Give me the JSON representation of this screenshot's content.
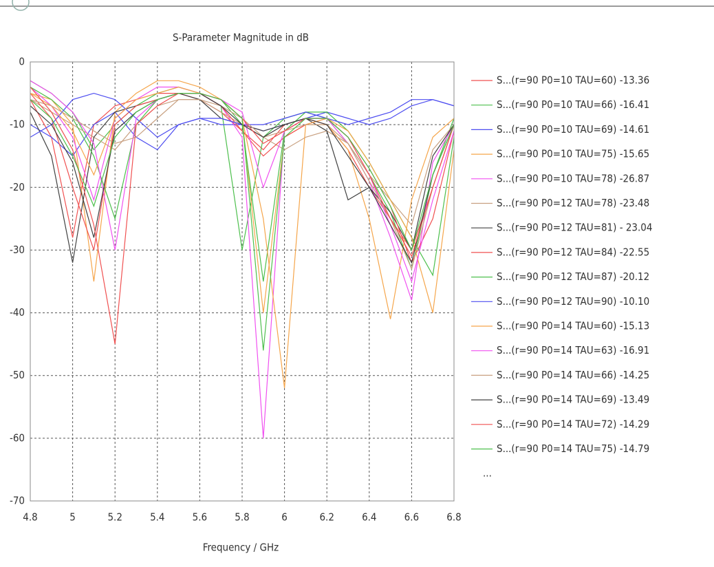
{
  "chart_data": {
    "type": "line",
    "title": "S-Parameter Magnitude in dB",
    "x_label": "Frequency / GHz",
    "x": [
      4.8,
      4.9,
      5.0,
      5.1,
      5.2,
      5.3,
      5.4,
      5.5,
      5.6,
      5.7,
      5.8,
      5.9,
      6.0,
      6.1,
      6.2,
      6.3,
      6.4,
      6.5,
      6.6,
      6.7,
      6.8
    ],
    "xlim": [
      4.8,
      6.8
    ],
    "xticks": [
      4.8,
      5,
      5.2,
      5.4,
      5.6,
      5.8,
      6,
      6.2,
      6.4,
      6.6,
      6.8
    ],
    "ylim": [
      -70,
      0
    ],
    "yticks": [
      0,
      -10,
      -20,
      -30,
      -40,
      -50,
      -60,
      -70
    ],
    "grid": true,
    "legend_overflow": "...",
    "series": [
      {
        "name": "S...(r=90 P0=10 TAU=60) -13.36",
        "color": "#f05050",
        "values": [
          -6,
          -12,
          -28,
          -10,
          -7,
          -6,
          -5,
          -5,
          -6,
          -8,
          -11,
          -14,
          -10,
          -9,
          -10,
          -14,
          -20,
          -25,
          -30,
          -20,
          -10
        ]
      },
      {
        "name": "S...(r=90 P0=10 TAU=66) -16.41",
        "color": "#4cbf4c",
        "values": [
          -3,
          -5,
          -8,
          -14,
          -10,
          -7,
          -5,
          -4,
          -5,
          -7,
          -30,
          -12,
          -9,
          -8,
          -9,
          -13,
          -18,
          -24,
          -33,
          -18,
          -9
        ]
      },
      {
        "name": "S...(r=90 P0=10 TAU=69) -14.61",
        "color": "#4c4cf0",
        "values": [
          -10,
          -12,
          -15,
          -10,
          -8,
          -12,
          -14,
          -10,
          -9,
          -10,
          -10,
          -11,
          -10,
          -9,
          -8,
          -9,
          -10,
          -9,
          -7,
          -6,
          -7
        ]
      },
      {
        "name": "S...(r=90 P0=10 TAU=75) -15.65",
        "color": "#f5a54a",
        "values": [
          -5,
          -6,
          -10,
          -35,
          -8,
          -5,
          -3,
          -3,
          -4,
          -6,
          -9,
          -40,
          -12,
          -10,
          -10,
          -14,
          -25,
          -41,
          -22,
          -12,
          -9
        ]
      },
      {
        "name": "S...(r=90 P0=10 TAU=78) -26.87",
        "color": "#f050f0",
        "values": [
          -4,
          -7,
          -12,
          -22,
          -9,
          -6,
          -4,
          -4,
          -5,
          -7,
          -12,
          -60,
          -11,
          -9,
          -9,
          -13,
          -19,
          -28,
          -38,
          -16,
          -10
        ]
      },
      {
        "name": "S...(r=90 P0=12 TAU=78) -23.48",
        "color": "#c8a080",
        "values": [
          -6,
          -8,
          -10,
          -12,
          -14,
          -10,
          -7,
          -6,
          -6,
          -8,
          -10,
          -12,
          -14,
          -12,
          -11,
          -13,
          -18,
          -22,
          -26,
          -14,
          -10
        ]
      },
      {
        "name": "S...(r=90 P0=12 TAU=81) - 23.04",
        "color": "#404040",
        "values": [
          -8,
          -15,
          -32,
          -12,
          -8,
          -7,
          -6,
          -5,
          -6,
          -9,
          -10,
          -11,
          -10,
          -9,
          -11,
          -22,
          -20,
          -24,
          -30,
          -15,
          -10
        ]
      },
      {
        "name": "S...(r=90 P0=12 TAU=84) -22.55",
        "color": "#f05050",
        "values": [
          -5,
          -9,
          -20,
          -30,
          -10,
          -7,
          -6,
          -5,
          -5,
          -7,
          -11,
          -15,
          -12,
          -10,
          -9,
          -12,
          -17,
          -23,
          -32,
          -25,
          -11
        ]
      },
      {
        "name": "S...(r=90 P0=12 TAU=87) -20.12",
        "color": "#4cbf4c",
        "values": [
          -4,
          -6,
          -9,
          -15,
          -25,
          -10,
          -6,
          -5,
          -5,
          -6,
          -10,
          -35,
          -11,
          -8,
          -8,
          -11,
          -16,
          -22,
          -28,
          -34,
          -12
        ]
      },
      {
        "name": "S...(r=90 P0=12 TAU=90) -10.10",
        "color": "#4c4cf0",
        "values": [
          -12,
          -10,
          -6,
          -5,
          -6,
          -9,
          -12,
          -10,
          -9,
          -9,
          -10,
          -10,
          -9,
          -8,
          -9,
          -10,
          -9,
          -8,
          -6,
          -6,
          -7
        ]
      },
      {
        "name": "S...(r=90 P0=14 TAU=60) -15.13",
        "color": "#f5a54a",
        "values": [
          -5,
          -7,
          -11,
          -18,
          -9,
          -6,
          -5,
          -4,
          -5,
          -6,
          -9,
          -25,
          -52,
          -10,
          -9,
          -11,
          -16,
          -22,
          -28,
          -40,
          -14
        ]
      },
      {
        "name": "S...(r=90 P0=14 TAU=63) -16.91",
        "color": "#f050f0",
        "values": [
          -3,
          -5,
          -8,
          -13,
          -30,
          -9,
          -6,
          -5,
          -5,
          -6,
          -8,
          -20,
          -11,
          -9,
          -9,
          -12,
          -18,
          -26,
          -35,
          -22,
          -11
        ]
      },
      {
        "name": "S...(r=90 P0=14 TAU=66) -14.25",
        "color": "#c8a080",
        "values": [
          -6,
          -7,
          -9,
          -11,
          -13,
          -12,
          -9,
          -6,
          -6,
          -7,
          -9,
          -12,
          -11,
          -10,
          -10,
          -13,
          -19,
          -25,
          -33,
          -20,
          -10
        ]
      },
      {
        "name": "S...(r=90 P0=14 TAU=69) -13.49",
        "color": "#404040",
        "values": [
          -7,
          -10,
          -16,
          -28,
          -11,
          -8,
          -6,
          -5,
          -5,
          -7,
          -10,
          -12,
          -10,
          -9,
          -10,
          -15,
          -20,
          -26,
          -32,
          -18,
          -10
        ]
      },
      {
        "name": "S...(r=90 P0=14 TAU=72) -14.29",
        "color": "#f05050",
        "values": [
          -4,
          -8,
          -14,
          -26,
          -45,
          -10,
          -7,
          -5,
          -5,
          -6,
          -9,
          -13,
          -11,
          -9,
          -9,
          -12,
          -18,
          -25,
          -31,
          -20,
          -10
        ]
      },
      {
        "name": "S...(r=90 P0=14 TAU=75) -14.79",
        "color": "#4cbf4c",
        "values": [
          -6,
          -9,
          -15,
          -23,
          -12,
          -8,
          -6,
          -5,
          -5,
          -6,
          -9,
          -46,
          -12,
          -9,
          -9,
          -12,
          -17,
          -23,
          -30,
          -18,
          -10
        ]
      }
    ]
  }
}
